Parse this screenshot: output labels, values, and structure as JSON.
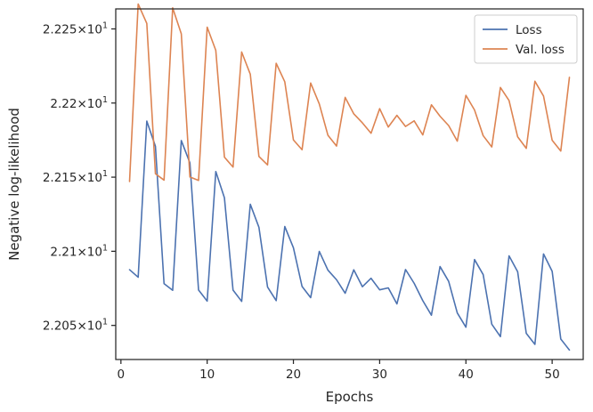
{
  "chart_data": {
    "type": "line",
    "xlabel": "Epochs",
    "ylabel": "Negative log-likelihood",
    "xlim": [
      -0.6,
      53.6
    ],
    "ylim": [
      22.027,
      22.2635
    ],
    "x_ticks": [
      0,
      10,
      20,
      30,
      40,
      50
    ],
    "y_ticks": [
      {
        "value": 22.05,
        "mantissa": "2.205",
        "exp": "1"
      },
      {
        "value": 22.1,
        "mantissa": "2.21",
        "exp": "1"
      },
      {
        "value": 22.15,
        "mantissa": "2.215",
        "exp": "1"
      },
      {
        "value": 22.2,
        "mantissa": "2.22",
        "exp": "1"
      },
      {
        "value": 22.25,
        "mantissa": "2.225",
        "exp": "1"
      }
    ],
    "grid": false,
    "legend_position": "top-right",
    "x": [
      1,
      2,
      3,
      4,
      5,
      6,
      7,
      8,
      9,
      10,
      11,
      12,
      13,
      14,
      15,
      16,
      17,
      18,
      19,
      20,
      21,
      22,
      23,
      24,
      25,
      26,
      27,
      28,
      29,
      30,
      31,
      32,
      33,
      34,
      35,
      36,
      37,
      38,
      39,
      40,
      41,
      42,
      43,
      44,
      45,
      46,
      47,
      48,
      49,
      50,
      51,
      52
    ],
    "series": [
      {
        "name": "Loss",
        "color": "#4c72b0",
        "values": [
          22.0876,
          22.0825,
          22.1878,
          22.1708,
          22.0782,
          22.0737,
          22.1747,
          22.1596,
          22.0739,
          22.0664,
          22.1538,
          22.1361,
          22.0738,
          22.0662,
          22.1317,
          22.1162,
          22.0759,
          22.0667,
          22.1167,
          22.1024,
          22.0763,
          22.0687,
          22.0999,
          22.0873,
          22.0808,
          22.0717,
          22.0875,
          22.0761,
          22.0818,
          22.074,
          22.0753,
          22.0645,
          22.0877,
          22.0784,
          22.0667,
          22.0569,
          22.0897,
          22.0797,
          22.0584,
          22.0488,
          22.0944,
          22.0843,
          22.0508,
          22.0424,
          22.0969,
          22.0862,
          22.0446,
          22.0372,
          22.0982,
          22.0865,
          22.0408,
          22.0334
        ]
      },
      {
        "name": "Val. loss",
        "color": "#dd8452",
        "values": [
          22.1471,
          22.2668,
          22.2537,
          22.1523,
          22.148,
          22.2642,
          22.2467,
          22.1501,
          22.1478,
          22.2512,
          22.2355,
          22.1635,
          22.1568,
          22.2344,
          22.2194,
          22.164,
          22.1583,
          22.2268,
          22.2143,
          22.1751,
          22.1685,
          22.2135,
          22.1994,
          22.1783,
          22.171,
          22.2038,
          22.1927,
          22.1866,
          22.1796,
          22.1962,
          22.1838,
          22.1917,
          22.1842,
          22.188,
          22.1785,
          22.1988,
          22.1911,
          22.1848,
          22.1743,
          22.2052,
          22.1953,
          22.178,
          22.1704,
          22.2105,
          22.2017,
          22.1772,
          22.1694,
          22.2147,
          22.2047,
          22.1749,
          22.1676,
          22.2173
        ]
      }
    ]
  }
}
